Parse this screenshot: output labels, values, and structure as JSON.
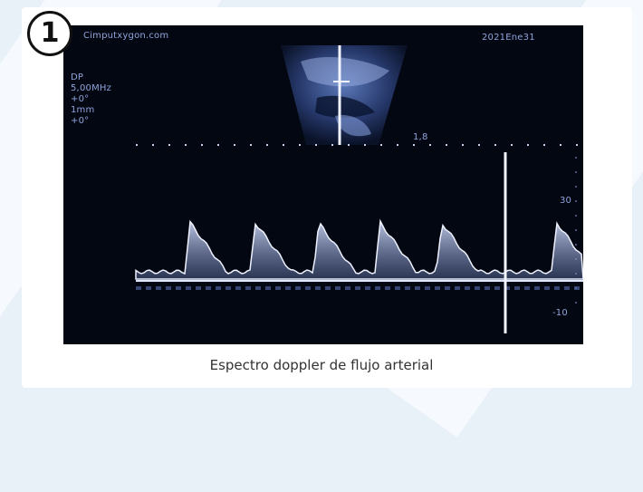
{
  "badge": "1",
  "screen": {
    "watermark": "Cimputxygon.com",
    "date": "2021Ene31",
    "params": [
      "DP",
      "5,00MHz",
      "+0°",
      "1mm",
      "+0°"
    ],
    "depth_label": "1,8",
    "scale_top": "30",
    "scale_bottom": "-10"
  },
  "caption": "Espectro doppler de flujo arterial"
}
